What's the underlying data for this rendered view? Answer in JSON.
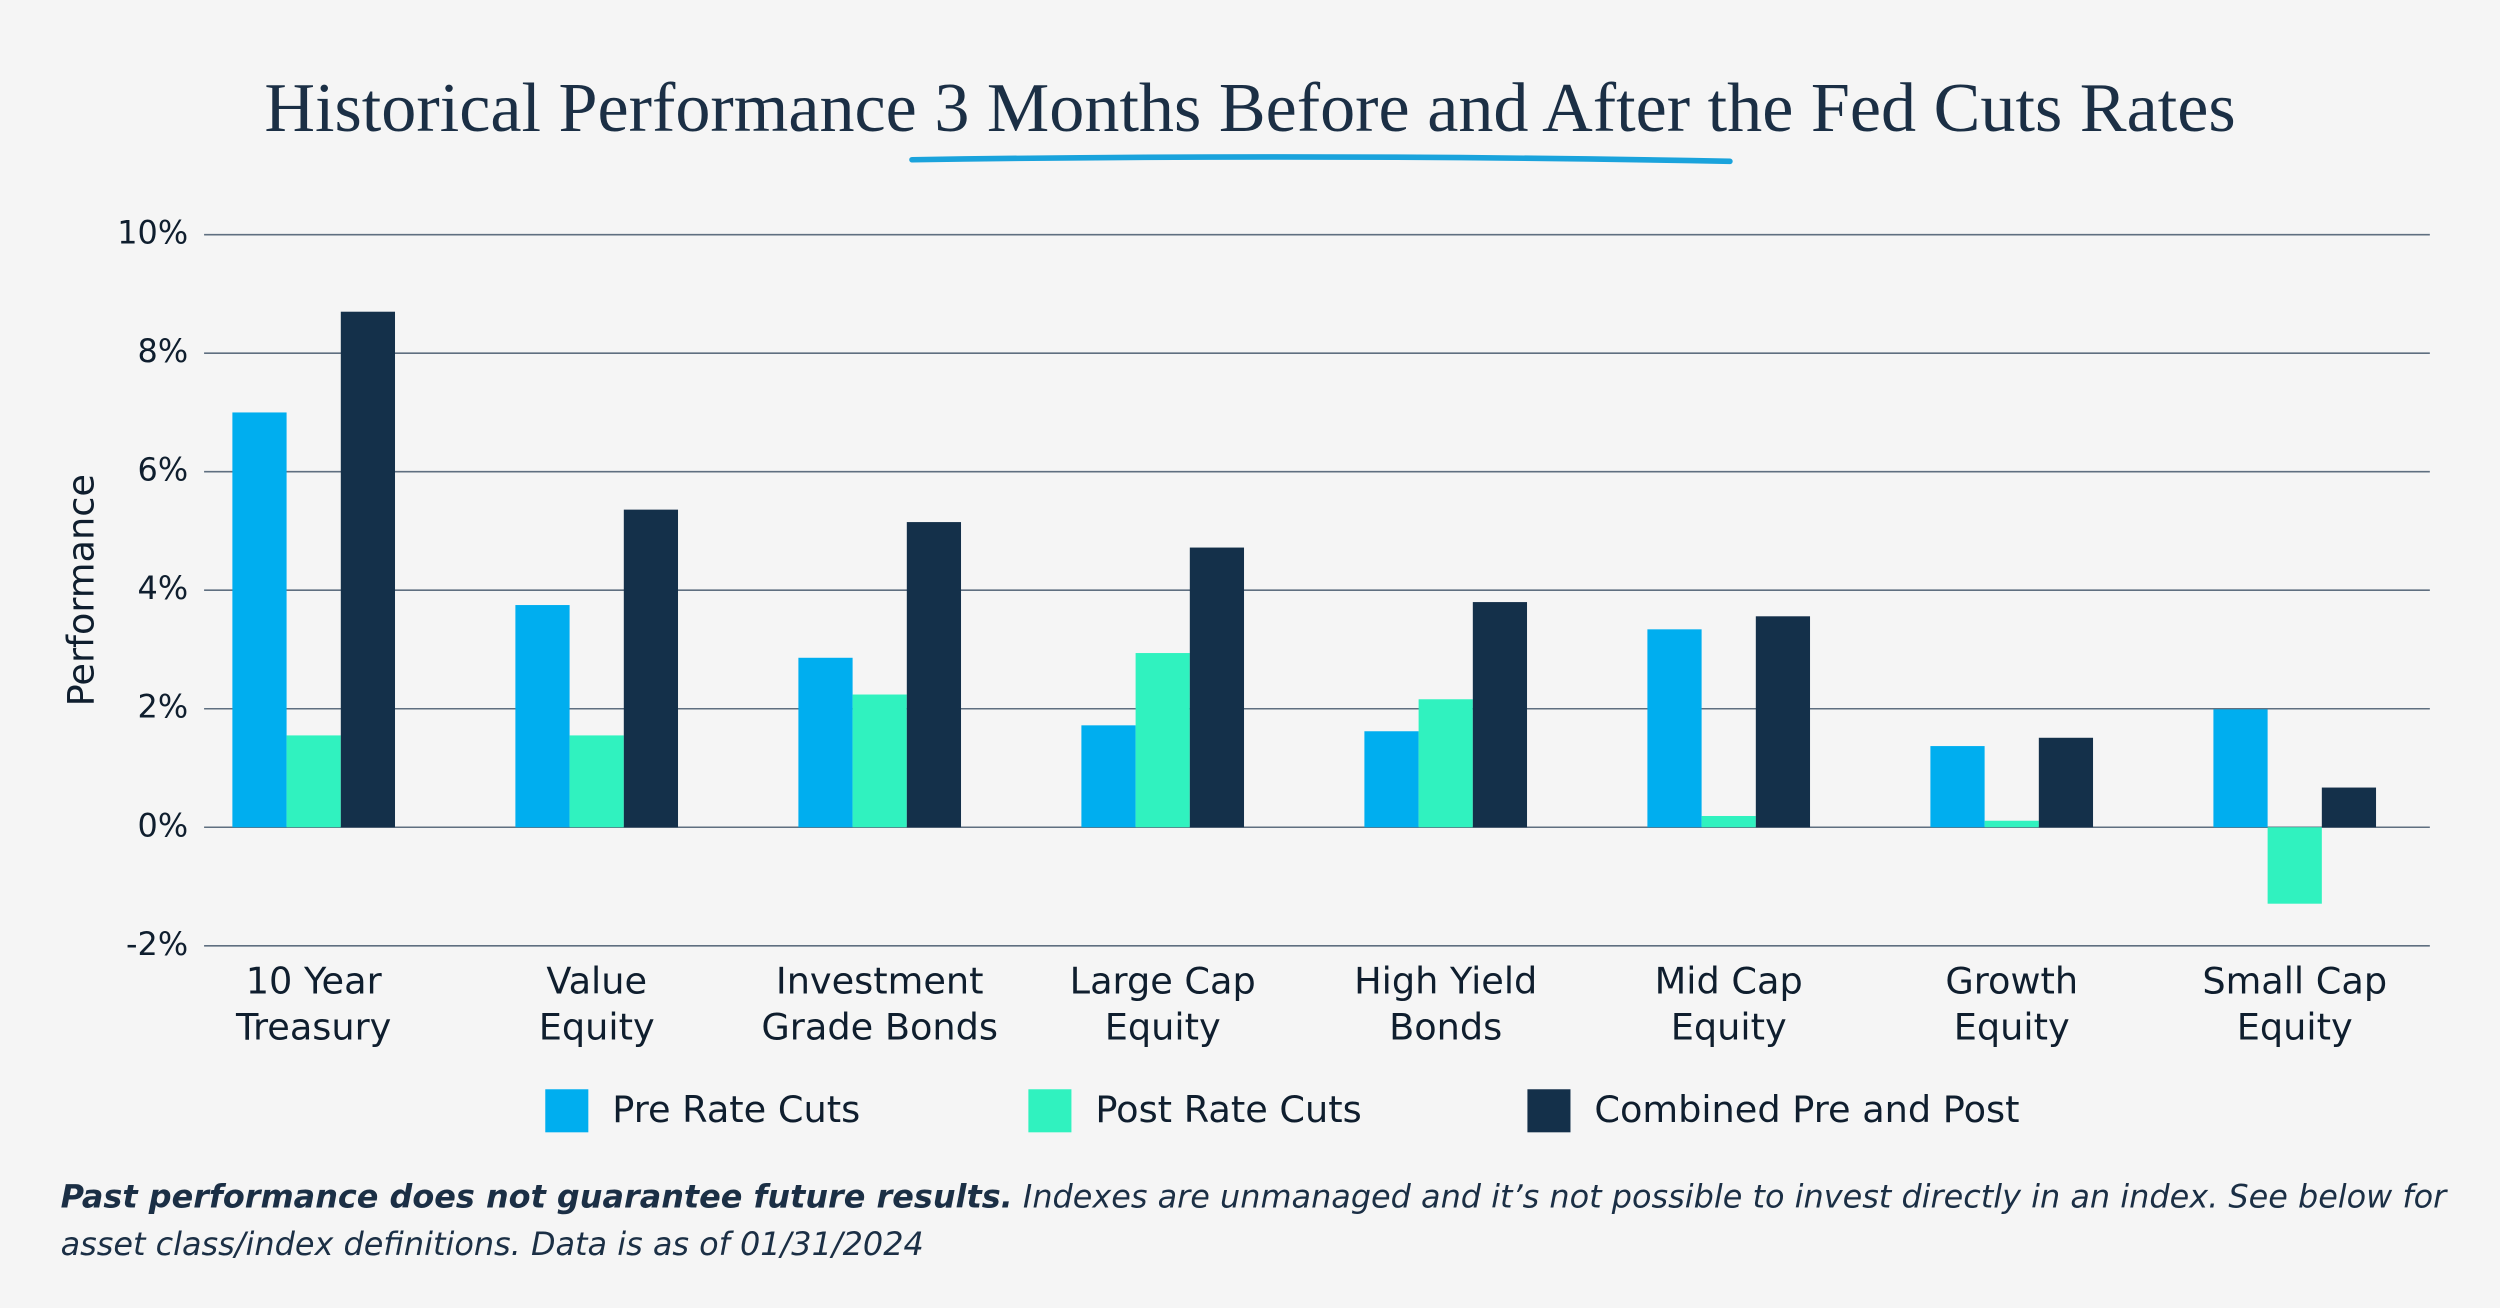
{
  "chart_data": {
    "type": "bar",
    "title": "Historical Performance 3 Months Before and After the Fed Cuts Rates",
    "y_label": "Performance",
    "categories": [
      "10 Year\nTreasury",
      "Value\nEquity",
      "Investment\nGrade Bonds",
      "Large Cap\nEquity",
      "High Yield\nBonds",
      "Mid Cap\nEquity",
      "Growth\nEquity",
      "Small Cap\nEquity"
    ],
    "series": [
      {
        "name": "Pre Rate Cuts",
        "color": "#00aeef",
        "values": [
          7.0,
          3.75,
          2.86,
          1.72,
          1.62,
          3.34,
          1.37,
          1.99
        ]
      },
      {
        "name": "Post Rate Cuts",
        "color": "#30f2bf",
        "values": [
          1.55,
          1.55,
          2.24,
          2.94,
          2.16,
          0.19,
          0.11,
          -1.29
        ]
      },
      {
        "name": "Combined Pre and Post",
        "color": "#14304a",
        "values": [
          8.7,
          5.36,
          5.15,
          4.72,
          3.8,
          3.56,
          1.51,
          0.67
        ]
      }
    ],
    "ylim": [
      -2,
      10
    ],
    "yticks": [
      {
        "value": -2,
        "label": "-2%"
      },
      {
        "value": 0,
        "label": "0%"
      },
      {
        "value": 2,
        "label": "2%"
      },
      {
        "value": 4,
        "label": "4%"
      },
      {
        "value": 6,
        "label": "6%"
      },
      {
        "value": 8,
        "label": "8%"
      },
      {
        "value": 10,
        "label": "10%"
      }
    ],
    "grid": true,
    "legend": "bottom",
    "footnote": {
      "bold": "Past performance does not guarantee future results.",
      "text": "Indexes are unmanaged and it’s not possible to invest directly in an index. See below for asset class/index definitions. Data is as of 01/31/2024"
    }
  }
}
